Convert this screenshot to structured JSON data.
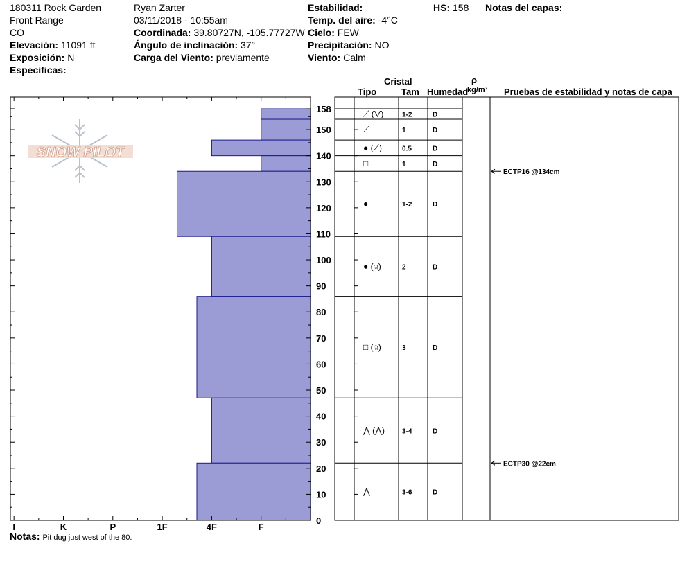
{
  "header": {
    "col1": [
      "180311 Rock Garden",
      "Front Range",
      "CO"
    ],
    "elevation_label": "Elevación:",
    "elevation_value": "11091 ft",
    "exposure_label": "Exposición:",
    "exposure_value": "N",
    "specifics_label": "Especificas:",
    "observer": "Ryan Zarter",
    "datetime": "03/11/2018 - 10:55am",
    "coord_label": "Coordinada:",
    "coord_value": "39.80727N, -105.77727W",
    "slope_label": "Ángulo de inclinación:",
    "slope_value": "37°",
    "wind_load_label": "Carga del Viento:",
    "wind_load_value": "previamente",
    "stability_label": "Estabilidad:",
    "air_temp_label": "Temp. del aire:",
    "air_temp_value": "-4°C",
    "sky_label": "Cielo:",
    "sky_value": "FEW",
    "precip_label": "Precipitación:",
    "precip_value": "NO",
    "wind_label": "Viento:",
    "wind_value": "Calm",
    "hs_label": "HS:",
    "hs_value": "158",
    "layer_notes_label": "Notas del capas:"
  },
  "table_headers": {
    "crystal": "Cristal",
    "type": "Tipo",
    "size": "Tam",
    "moisture": "Humedad",
    "density_symbol": "ρ",
    "density_unit": "kg/m³",
    "tests": "Pruebas de estabilidad y notas de capa"
  },
  "logo_text": "SNOW PILOT",
  "notes_label": "Notas:",
  "notes_value": "Pit dug just west of the 80.",
  "chart_data": {
    "type": "bar",
    "orientation": "horizontal",
    "xlabel": "",
    "ylabel": "",
    "ylim": [
      0,
      158
    ],
    "hardness_categories": [
      "I",
      "K",
      "P",
      "1F",
      "4F",
      "F"
    ],
    "hardness_scale": [
      6,
      5,
      4,
      3,
      2,
      1
    ],
    "y_tick_labels": [
      "158",
      "150",
      "140",
      "130",
      "120",
      "110",
      "100",
      "90",
      "80",
      "70",
      "60",
      "50",
      "40",
      "30",
      "20",
      "10",
      "0"
    ],
    "y_ticks": [
      158,
      150,
      140,
      130,
      120,
      110,
      100,
      90,
      80,
      70,
      60,
      50,
      40,
      30,
      20,
      10,
      0
    ],
    "bar_color": "#9b9bd6",
    "bar_edge_color": "#1a1a8c",
    "layers": [
      {
        "top": 158,
        "bottom": 154,
        "hardness": "F",
        "value": 1.0,
        "grain": "⟋ (⋁)",
        "size": "1-2",
        "moisture": "D"
      },
      {
        "top": 154,
        "bottom": 146,
        "hardness": "F",
        "value": 1.0,
        "grain": "⟋",
        "size": "1",
        "moisture": "D"
      },
      {
        "top": 146,
        "bottom": 140,
        "hardness": "4F",
        "value": 2.0,
        "grain": "● (⟋)",
        "size": "0.5",
        "moisture": "D"
      },
      {
        "top": 140,
        "bottom": 134,
        "hardness": "F",
        "value": 1.0,
        "grain": "□",
        "size": "1",
        "moisture": "D"
      },
      {
        "top": 134,
        "bottom": 109,
        "hardness": "1F",
        "value": 2.7,
        "grain": "●",
        "size": "1-2",
        "moisture": "D"
      },
      {
        "top": 109,
        "bottom": 86,
        "hardness": "4F",
        "value": 2.0,
        "grain": "● (⍝)",
        "size": "2",
        "moisture": "D"
      },
      {
        "top": 86,
        "bottom": 47,
        "hardness": "1F",
        "value": 2.3,
        "grain": "□ (⍝)",
        "size": "3",
        "moisture": "D"
      },
      {
        "top": 47,
        "bottom": 22,
        "hardness": "4F",
        "value": 2.0,
        "grain": "⋀ (⋀)",
        "size": "3-4",
        "moisture": "D"
      },
      {
        "top": 22,
        "bottom": 0,
        "hardness": "1F",
        "value": 2.3,
        "grain": "⋀",
        "size": "3-6",
        "moisture": "D"
      }
    ],
    "stability_tests": [
      {
        "label": "ECTP16 @134cm",
        "depth": 134
      },
      {
        "label": "ECTP30 @22cm",
        "depth": 22
      }
    ]
  }
}
